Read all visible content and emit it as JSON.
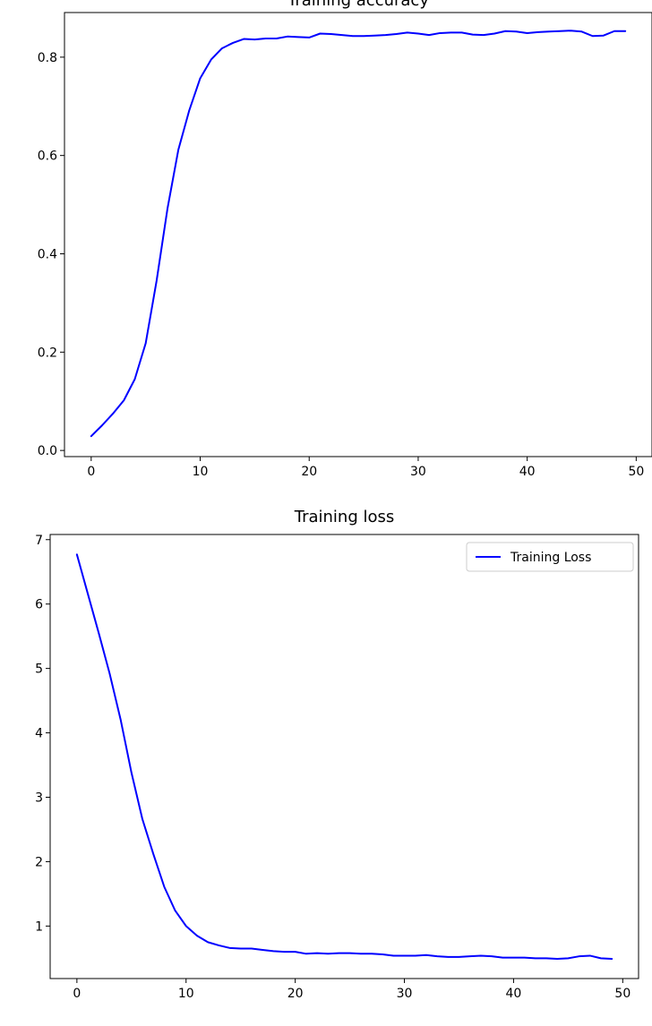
{
  "chart_data": [
    {
      "type": "line",
      "title": "Training accuracy",
      "xlabel": "",
      "ylabel": "",
      "xlim": [
        -2.45,
        51.45
      ],
      "ylim": [
        -0.0125,
        0.8908
      ],
      "xticks": [
        0,
        10,
        20,
        30,
        40,
        50
      ],
      "yticks": [
        0.0,
        0.2,
        0.4,
        0.6,
        0.8
      ],
      "ytick_labels": [
        "0.0",
        "0.2",
        "0.4",
        "0.6",
        "0.8"
      ],
      "grid": false,
      "legend": null,
      "series": [
        {
          "color": "#0000ff",
          "x": [
            0,
            1,
            2,
            3,
            4,
            5,
            6,
            7,
            8,
            9,
            10,
            11,
            12,
            13,
            14,
            15,
            16,
            17,
            18,
            19,
            20,
            21,
            22,
            23,
            24,
            25,
            26,
            27,
            28,
            29,
            30,
            31,
            32,
            33,
            34,
            35,
            36,
            37,
            38,
            39,
            40,
            41,
            42,
            43,
            44,
            45,
            46,
            47,
            48,
            49
          ],
          "y": [
            0.029,
            0.051,
            0.075,
            0.102,
            0.145,
            0.218,
            0.345,
            0.492,
            0.612,
            0.692,
            0.757,
            0.795,
            0.818,
            0.829,
            0.837,
            0.836,
            0.838,
            0.838,
            0.842,
            0.841,
            0.84,
            0.848,
            0.847,
            0.845,
            0.843,
            0.843,
            0.844,
            0.845,
            0.847,
            0.85,
            0.848,
            0.845,
            0.849,
            0.85,
            0.85,
            0.846,
            0.845,
            0.848,
            0.853,
            0.852,
            0.849,
            0.851,
            0.852,
            0.853,
            0.854,
            0.852,
            0.843,
            0.844,
            0.853,
            0.853
          ]
        }
      ]
    },
    {
      "type": "line",
      "title": "Training loss",
      "xlabel": "",
      "ylabel": "",
      "xlim": [
        -2.45,
        51.45
      ],
      "ylim": [
        0.185,
        7.08
      ],
      "xticks": [
        0,
        10,
        20,
        30,
        40,
        50
      ],
      "yticks": [
        1,
        2,
        3,
        4,
        5,
        6,
        7
      ],
      "ytick_labels": [
        "1",
        "2",
        "3",
        "4",
        "5",
        "6",
        "7"
      ],
      "grid": false,
      "legend": "top-right",
      "series": [
        {
          "name": "Training Loss",
          "color": "#0000ff",
          "x": [
            0,
            1,
            2,
            3,
            4,
            5,
            6,
            7,
            8,
            9,
            10,
            11,
            12,
            13,
            14,
            15,
            16,
            17,
            18,
            19,
            20,
            21,
            22,
            23,
            24,
            25,
            26,
            27,
            28,
            29,
            30,
            31,
            32,
            33,
            34,
            35,
            36,
            37,
            38,
            39,
            40,
            41,
            42,
            43,
            44,
            45,
            46,
            47,
            48,
            49
          ],
          "y": [
            6.77,
            6.16,
            5.55,
            4.92,
            4.21,
            3.38,
            2.66,
            2.12,
            1.61,
            1.24,
            1.0,
            0.85,
            0.75,
            0.7,
            0.66,
            0.65,
            0.65,
            0.63,
            0.61,
            0.6,
            0.6,
            0.57,
            0.58,
            0.57,
            0.58,
            0.58,
            0.57,
            0.57,
            0.56,
            0.54,
            0.54,
            0.54,
            0.55,
            0.53,
            0.52,
            0.52,
            0.53,
            0.54,
            0.53,
            0.51,
            0.51,
            0.51,
            0.5,
            0.5,
            0.49,
            0.5,
            0.53,
            0.54,
            0.5,
            0.49
          ]
        }
      ]
    }
  ]
}
